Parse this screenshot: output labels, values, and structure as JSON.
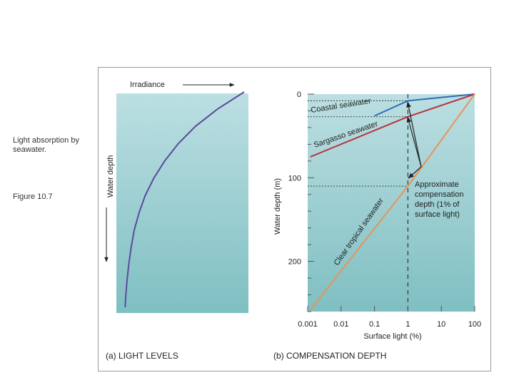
{
  "slide": {
    "caption": "Light absorption by seawater.",
    "figure_label": "Figure 10.7"
  },
  "panel_a": {
    "caption": "(a) LIGHT LEVELS",
    "x_label": "Irradiance",
    "y_label": "Water depth"
  },
  "panel_b": {
    "caption": "(b) COMPENSATION DEPTH",
    "x_label": "Surface light (%)",
    "y_label": "Water depth (m)",
    "annotation": [
      "Approximate",
      "compensation",
      "depth (1% of",
      "surface light)"
    ]
  },
  "colors": {
    "plot_bg_top": "#bcdfe2",
    "plot_bg_bottom": "#7fbfc2",
    "irradiance_curve": "#5a4b9a",
    "coastal": "#2f6db4",
    "sargasso": "#b8313f",
    "clear_tropical": "#e7925a"
  },
  "chart_data": [
    {
      "type": "line",
      "title": "",
      "xlabel": "Irradiance",
      "ylabel": "Water depth",
      "x_range": [
        0,
        1
      ],
      "y_range": [
        0,
        1
      ],
      "y_inverted": true,
      "series": [
        {
          "x": [
            1.0,
            0.78,
            0.6,
            0.46,
            0.35,
            0.26,
            0.19,
            0.14,
            0.1,
            0.075,
            0.055,
            0.04,
            0.03,
            0.025
          ],
          "y": [
            0.0,
            0.08,
            0.16,
            0.24,
            0.32,
            0.4,
            0.48,
            0.56,
            0.64,
            0.72,
            0.8,
            0.88,
            0.95,
            1.0
          ],
          "color": "#5a4b9a"
        }
      ]
    },
    {
      "type": "line",
      "title": "",
      "xlabel": "Surface light (%)",
      "ylabel": "Water depth (m)",
      "x_scale": "log",
      "x_range": [
        0.001,
        100
      ],
      "x_ticks": [
        "0.001",
        "0.01",
        "0.1",
        "1",
        "10",
        "100"
      ],
      "y_range": [
        0,
        260
      ],
      "y_inverted": true,
      "y_ticks": [
        "0",
        "100",
        "200"
      ],
      "series": [
        {
          "name": "Coastal seawater",
          "x": [
            100,
            1,
            0.1
          ],
          "y": [
            0,
            8,
            26
          ],
          "color": "#2f6db4"
        },
        {
          "name": "Sargasso seawater",
          "x": [
            100,
            1,
            0.0012
          ],
          "y": [
            0,
            27,
            75
          ],
          "color": "#b8313f"
        },
        {
          "name": "Clear tropical seawater",
          "x": [
            100,
            1,
            0.0012
          ],
          "y": [
            0,
            110,
            258
          ],
          "color": "#e7925a"
        }
      ],
      "reference_lines": [
        {
          "axis": "x",
          "value": 1,
          "style": "dashed"
        },
        {
          "axis": "y",
          "value": 8,
          "style": "dotted"
        },
        {
          "axis": "y",
          "value": 27,
          "style": "dotted"
        },
        {
          "axis": "y",
          "value": 110,
          "style": "dotted"
        }
      ],
      "grid": false
    }
  ]
}
